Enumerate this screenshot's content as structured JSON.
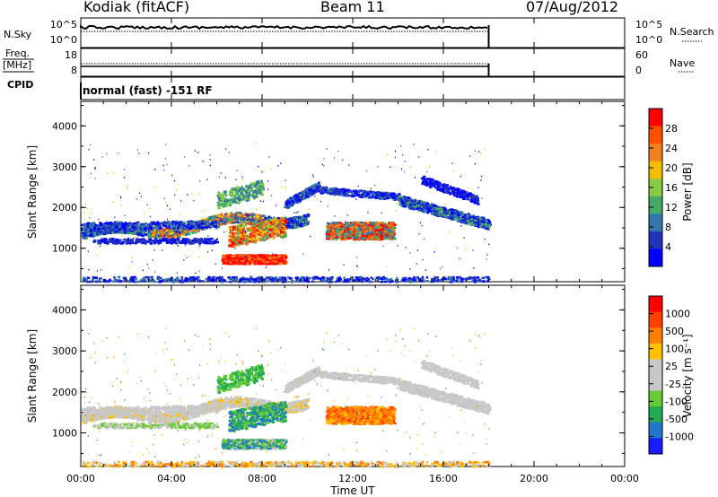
{
  "header": {
    "station": "Kodiak (fitACF)",
    "beam": "Beam 11",
    "date": "07/Aug/2012"
  },
  "left_labels": {
    "nsky": "N.Sky",
    "freq": "Freq.",
    "freq_unit": "[MHz]",
    "cpid": "CPID"
  },
  "right_labels": {
    "nsearch": "N.Search",
    "nave": "Nave"
  },
  "cpid_text": "normal (fast) -151 RF",
  "colors": {
    "power_scale": [
      "#0000ff",
      "#2233bb",
      "#3377aa",
      "#44aa66",
      "#88cc44",
      "#f0c000",
      "#f08020",
      "#ff5000",
      "#ff0000"
    ],
    "velocity_scale": [
      "#1a1aff",
      "#2277cc",
      "#22aa55",
      "#66cc33",
      "#c8c8c8",
      "#c8c8c8",
      "#ffc000",
      "#ff8000",
      "#ff4000",
      "#ff0000"
    ]
  },
  "chart_data": [
    {
      "name_ref": "nsky_nsearch",
      "type": "line",
      "y_left_ticks": [
        "10^5",
        "10^0"
      ],
      "y_right_ticks": [
        "10^5",
        "10^0"
      ],
      "x_range": [
        0,
        24
      ],
      "data_end_hour": 18,
      "nsky_level": "~10^4.5",
      "nsearch_level": "~10^4"
    },
    {
      "name_ref": "freq_nave",
      "type": "line",
      "y_left_ticks": [
        "18",
        "8"
      ],
      "y_right_ticks": [
        "60",
        "0"
      ],
      "x_range": [
        0,
        24
      ],
      "data_end_hour": 18,
      "freq_mhz": 11,
      "nave": 40
    },
    {
      "name_ref": "power_panel",
      "type": "heatmap",
      "ylabel": "Slant Range [km]",
      "colorbar_label": "Power [dB]",
      "colorbar_ticks": [
        "28",
        "24",
        "20",
        "16",
        "12",
        "8",
        "4"
      ],
      "yticks": [
        "4000",
        "3000",
        "2000",
        "1000"
      ],
      "ylim": [
        180,
        4600
      ],
      "xlim": [
        0,
        24
      ]
    },
    {
      "name_ref": "velocity_panel",
      "type": "heatmap",
      "ylabel": "Slant Range [km]",
      "colorbar_label": "Velocity [m s⁻¹]",
      "colorbar_ticks": [
        "1000",
        "500",
        "100",
        "25",
        "-25",
        "-100",
        "-500",
        "-1000"
      ],
      "yticks": [
        "4000",
        "3000",
        "2000",
        "1000"
      ],
      "ylim": [
        180,
        4600
      ],
      "xlim": [
        0,
        24
      ]
    },
    {
      "name_ref": "time_axis",
      "xticks": [
        "00:00",
        "04:00",
        "08:00",
        "12:00",
        "16:00",
        "20:00",
        "00:00"
      ],
      "xlabel": "Time UT"
    }
  ]
}
